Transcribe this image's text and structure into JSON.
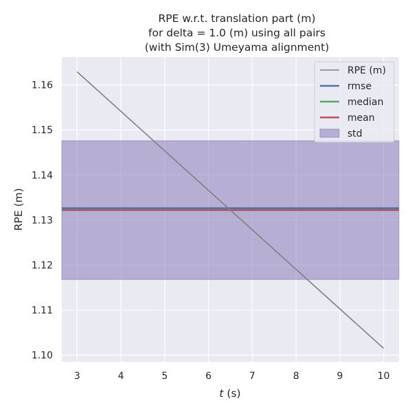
{
  "chart_data": {
    "type": "line",
    "title_lines": [
      "RPE w.r.t. translation part (m)",
      "for delta = 1.0 (m) using all pairs",
      "(with Sim(3) Umeyama alignment)"
    ],
    "xlabel_italic": "t",
    "xlabel_rest": " (s)",
    "ylabel": "RPE (m)",
    "xlim": [
      2.65,
      10.35
    ],
    "ylim": [
      1.0985,
      1.1662
    ],
    "xticks": [
      3,
      4,
      5,
      6,
      7,
      8,
      9,
      10
    ],
    "yticks": [
      1.1,
      1.11,
      1.12,
      1.13,
      1.14,
      1.15,
      1.16
    ],
    "ytick_labels": [
      "1.10",
      "1.11",
      "1.12",
      "1.13",
      "1.14",
      "1.15",
      "1.16"
    ],
    "grid": true,
    "background": "#eaeaf2",
    "legend_position": "top-right",
    "series": [
      {
        "name": "RPE (m)",
        "x": [
          3,
          10
        ],
        "y": [
          1.1629,
          1.1015
        ],
        "color": "#808080"
      }
    ],
    "stats": {
      "rmse": {
        "name": "rmse",
        "value": 1.1326,
        "color": "#4c72b0"
      },
      "median": {
        "name": "median",
        "value": 1.1322,
        "color": "#55a868"
      },
      "mean": {
        "name": "mean",
        "value": 1.1322,
        "color": "#c44e52"
      },
      "std": {
        "name": "std",
        "low": 1.1168,
        "high": 1.1476,
        "color": "#8172b3"
      }
    }
  }
}
